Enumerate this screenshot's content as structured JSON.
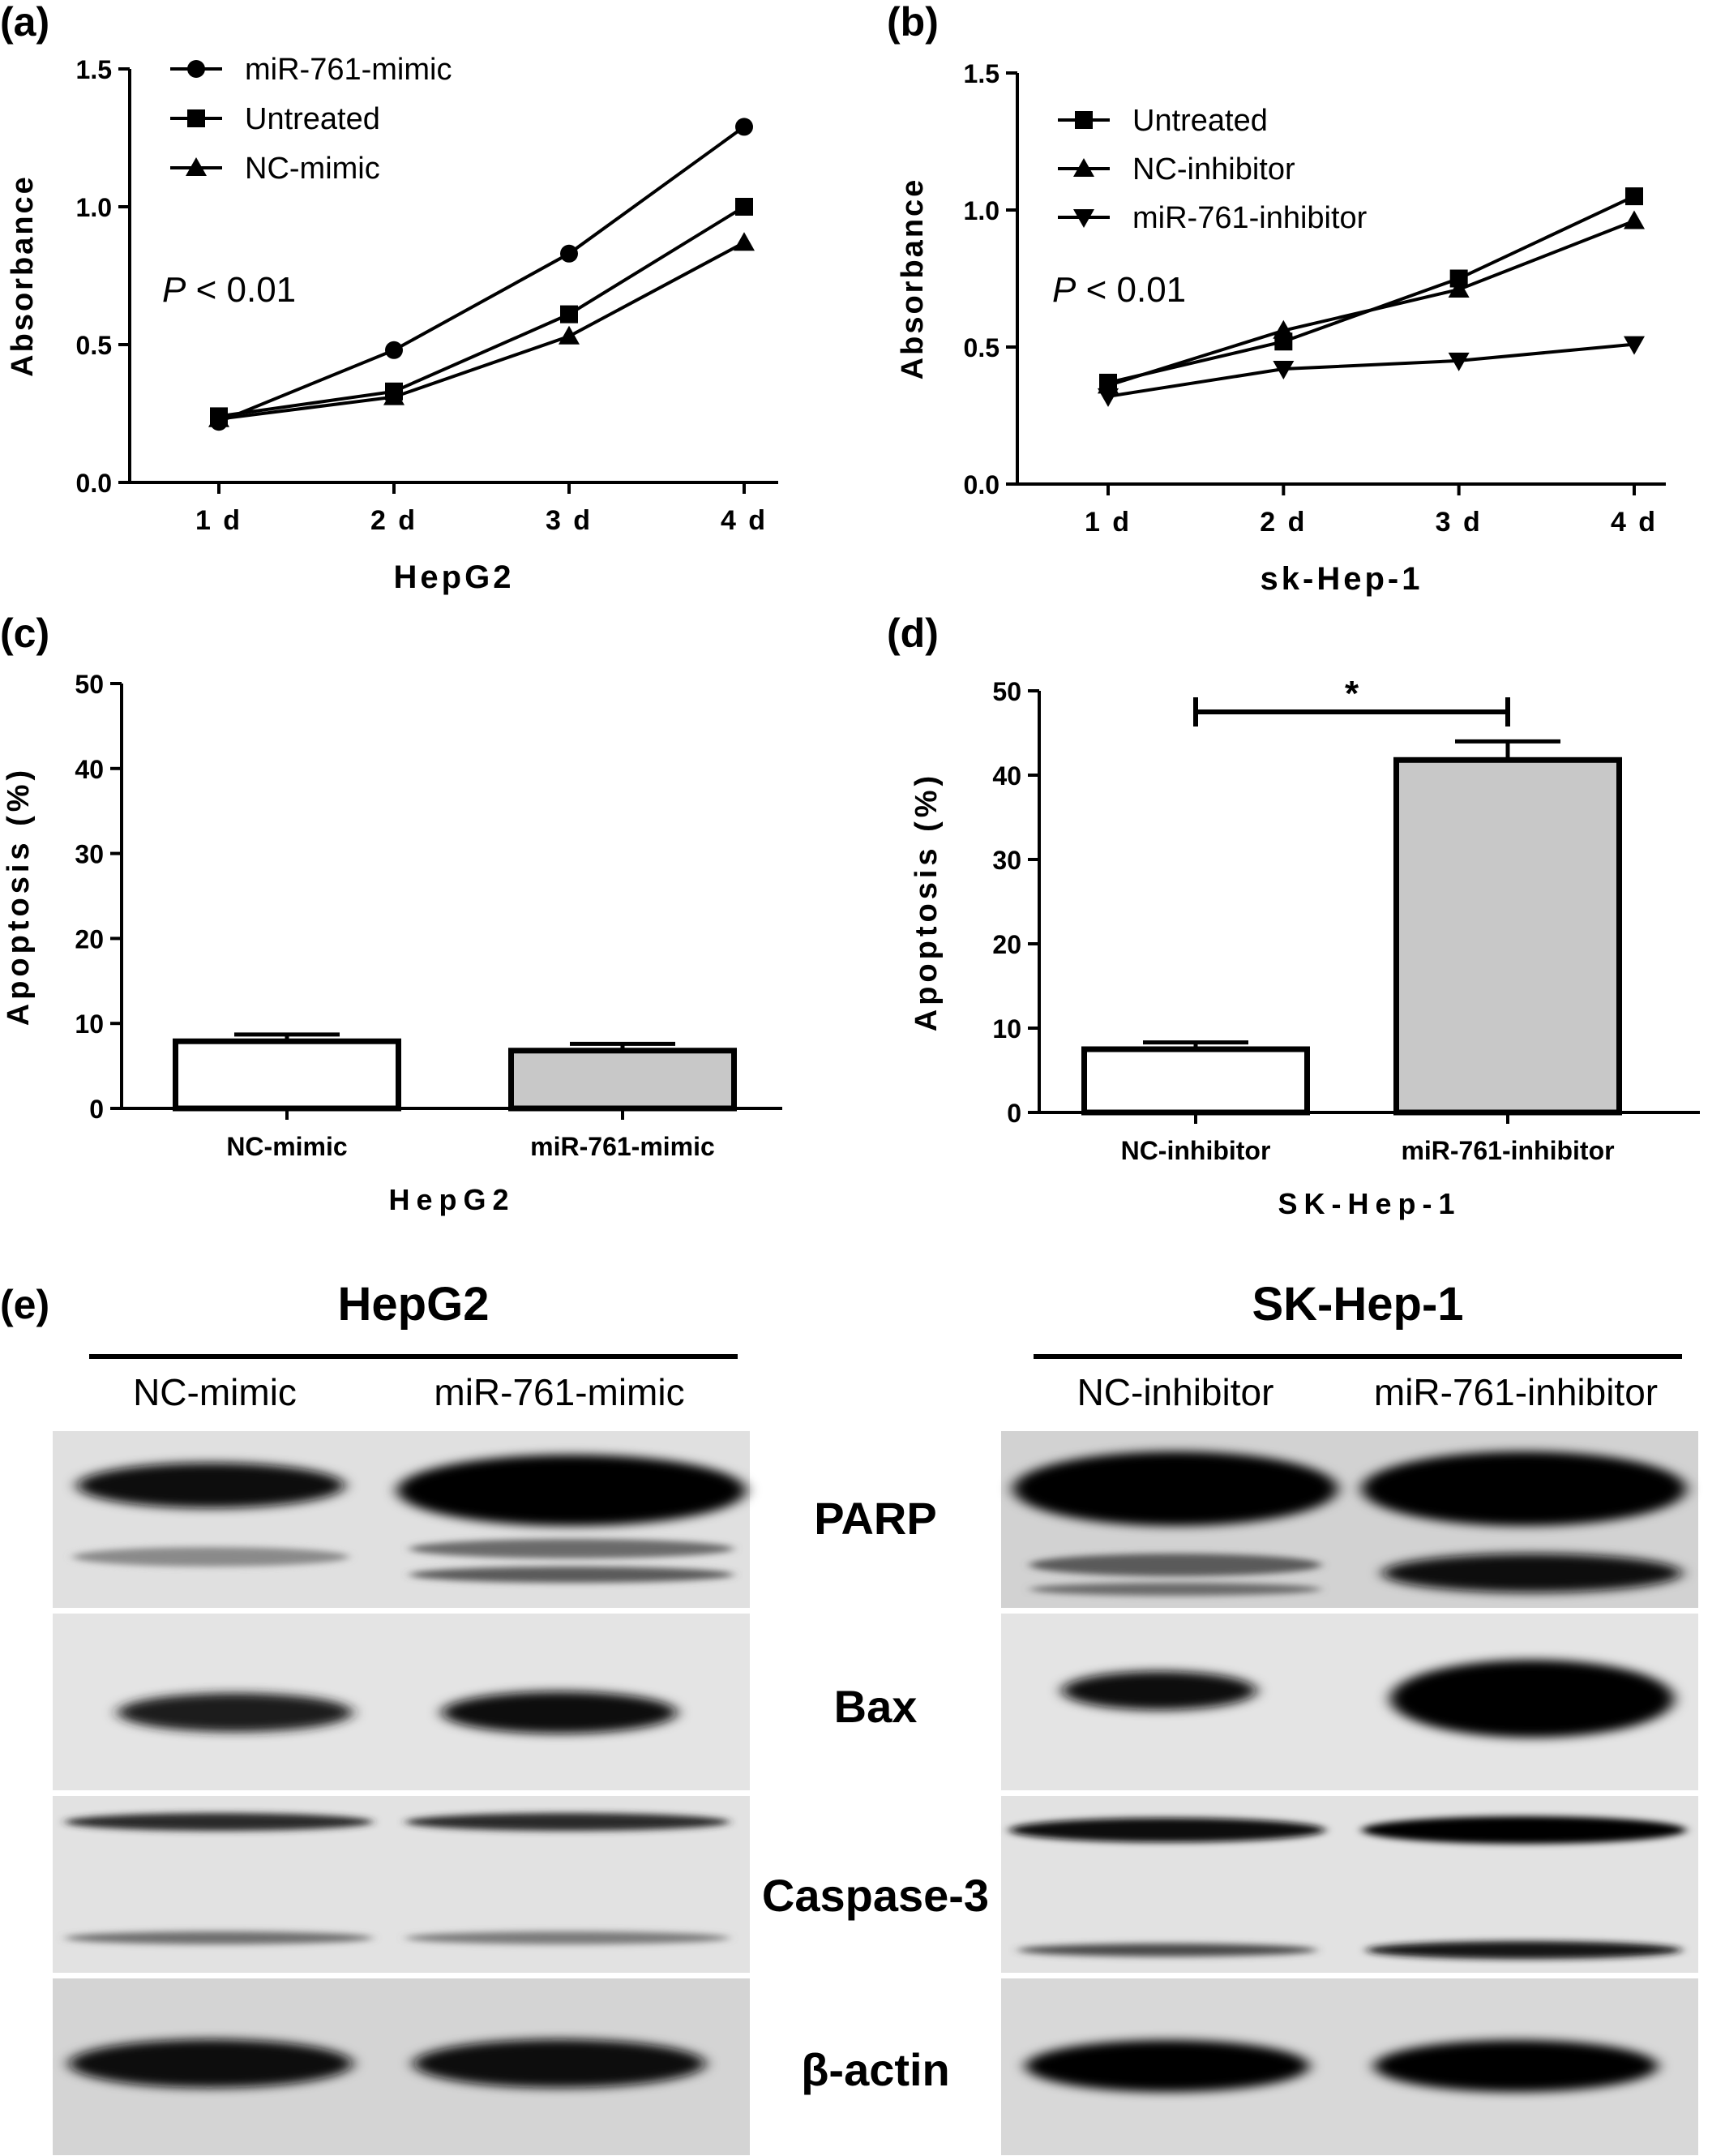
{
  "panels": {
    "a": "(a)",
    "b": "(b)",
    "c": "(c)",
    "d": "(d)",
    "e": "(e)"
  },
  "chart_data": [
    {
      "id": "a",
      "type": "line",
      "ylabel": "Absorbance",
      "xlabel": "HepG2",
      "categories": [
        "1 d",
        "2 d",
        "3 d",
        "4 d"
      ],
      "ylim": [
        0,
        1.5
      ],
      "yticks": [
        "0.0",
        "0.5",
        "1.0",
        "1.5"
      ],
      "annotation": {
        "italic": "P",
        "rest": " < 0.01"
      },
      "legend_position": "top-left",
      "series": [
        {
          "name": "miR-761-mimic",
          "marker": "circle",
          "values": [
            0.22,
            0.48,
            0.83,
            1.29
          ]
        },
        {
          "name": "Untreated",
          "marker": "square",
          "values": [
            0.24,
            0.33,
            0.61,
            1.0
          ]
        },
        {
          "name": "NC-mimic",
          "marker": "triangle",
          "values": [
            0.23,
            0.31,
            0.53,
            0.87
          ]
        }
      ]
    },
    {
      "id": "b",
      "type": "line",
      "ylabel": "Absorbance",
      "xlabel": "sk-Hep-1",
      "categories": [
        "1 d",
        "2 d",
        "3 d",
        "4 d"
      ],
      "ylim": [
        0,
        1.5
      ],
      "yticks": [
        "0.0",
        "0.5",
        "1.0",
        "1.5"
      ],
      "annotation": {
        "italic": "P",
        "rest": " < 0.01"
      },
      "legend_position": "top-left",
      "series": [
        {
          "name": "Untreated",
          "marker": "square",
          "values": [
            0.37,
            0.52,
            0.75,
            1.05
          ]
        },
        {
          "name": "NC-inhibitor",
          "marker": "triangle",
          "values": [
            0.36,
            0.56,
            0.71,
            0.96
          ]
        },
        {
          "name": "miR-761-inhibitor",
          "marker": "triangle-down",
          "values": [
            0.32,
            0.42,
            0.45,
            0.51
          ]
        }
      ]
    },
    {
      "id": "c",
      "type": "bar",
      "ylabel": "Apoptosis (%)",
      "xlabel": "HepG2",
      "categories": [
        "NC-mimic",
        "miR-761-mimic"
      ],
      "values": [
        7.9,
        6.8
      ],
      "errors": [
        0.8,
        0.8
      ],
      "ylim": [
        0,
        50
      ],
      "yticks": [
        "0",
        "10",
        "20",
        "30",
        "40",
        "50"
      ],
      "fills": [
        "#ffffff",
        "#c8c8c8"
      ]
    },
    {
      "id": "d",
      "type": "bar",
      "ylabel": "Apoptosis (%)",
      "xlabel": "SK-Hep-1",
      "categories": [
        "NC-inhibitor",
        "miR-761-inhibitor"
      ],
      "values": [
        7.5,
        41.8
      ],
      "errors": [
        0.8,
        2.2
      ],
      "ylim": [
        0,
        50
      ],
      "yticks": [
        "0",
        "10",
        "20",
        "30",
        "40",
        "50"
      ],
      "fills": [
        "#ffffff",
        "#c8c8c8"
      ],
      "significance": {
        "label": "*",
        "value": 47.5
      }
    }
  ],
  "blots": {
    "left": {
      "title": "HepG2",
      "lanes": [
        "NC-mimic",
        "miR-761-mimic"
      ]
    },
    "right": {
      "title": "SK-Hep-1",
      "lanes": [
        "NC-inhibitor",
        "miR-761-inhibitor"
      ]
    },
    "proteins": [
      "PARP",
      "Bax",
      "Caspase-3",
      "β-actin"
    ]
  }
}
